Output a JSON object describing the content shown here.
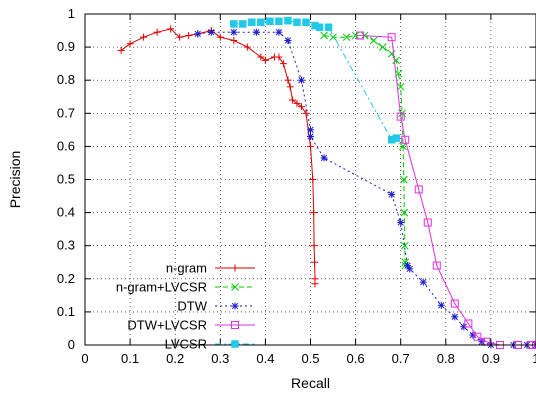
{
  "chart_data": {
    "type": "line",
    "xlabel": "Recall",
    "ylabel": "Precision",
    "xlim": [
      0,
      1
    ],
    "ylim": [
      0,
      1
    ],
    "x_ticks": [
      "0",
      "0.1",
      "0.2",
      "0.3",
      "0.4",
      "0.5",
      "0.6",
      "0.7",
      "0.8",
      "0.9",
      "1"
    ],
    "y_ticks": [
      "0",
      "0.1",
      "0.2",
      "0.3",
      "0.4",
      "0.5",
      "0.6",
      "0.7",
      "0.8",
      "0.9",
      "1"
    ],
    "grid": true,
    "legend_position": "bottom-left",
    "series": [
      {
        "name": "n-gram",
        "color": "#dd0000",
        "dash": "solid",
        "marker": "plus",
        "points": [
          [
            0.08,
            0.89
          ],
          [
            0.1,
            0.91
          ],
          [
            0.13,
            0.93
          ],
          [
            0.16,
            0.945
          ],
          [
            0.19,
            0.955
          ],
          [
            0.21,
            0.93
          ],
          [
            0.23,
            0.935
          ],
          [
            0.25,
            0.94
          ],
          [
            0.28,
            0.95
          ],
          [
            0.3,
            0.93
          ],
          [
            0.33,
            0.92
          ],
          [
            0.36,
            0.9
          ],
          [
            0.39,
            0.87
          ],
          [
            0.4,
            0.86
          ],
          [
            0.42,
            0.87
          ],
          [
            0.43,
            0.87
          ],
          [
            0.44,
            0.85
          ],
          [
            0.45,
            0.8
          ],
          [
            0.455,
            0.78
          ],
          [
            0.46,
            0.74
          ],
          [
            0.47,
            0.73
          ],
          [
            0.48,
            0.72
          ],
          [
            0.49,
            0.7
          ],
          [
            0.5,
            0.6
          ],
          [
            0.505,
            0.5
          ],
          [
            0.507,
            0.4
          ],
          [
            0.508,
            0.3
          ],
          [
            0.509,
            0.25
          ],
          [
            0.51,
            0.2
          ],
          [
            0.51,
            0.185
          ]
        ]
      },
      {
        "name": "n-gram+LVCSR",
        "color": "#00cc00",
        "dash": "5,3",
        "marker": "x",
        "points": [
          [
            0.53,
            0.935
          ],
          [
            0.55,
            0.93
          ],
          [
            0.58,
            0.93
          ],
          [
            0.6,
            0.935
          ],
          [
            0.62,
            0.935
          ],
          [
            0.64,
            0.92
          ],
          [
            0.66,
            0.9
          ],
          [
            0.68,
            0.88
          ],
          [
            0.69,
            0.86
          ],
          [
            0.695,
            0.82
          ],
          [
            0.7,
            0.78
          ],
          [
            0.703,
            0.7
          ],
          [
            0.705,
            0.6
          ],
          [
            0.707,
            0.5
          ],
          [
            0.708,
            0.4
          ],
          [
            0.709,
            0.3
          ],
          [
            0.71,
            0.25
          ],
          [
            0.71,
            0.24
          ]
        ]
      },
      {
        "name": "DTW",
        "color": "#1a1acc",
        "dash": "2,3",
        "marker": "star",
        "points": [
          [
            0.25,
            0.94
          ],
          [
            0.28,
            0.945
          ],
          [
            0.33,
            0.945
          ],
          [
            0.38,
            0.945
          ],
          [
            0.43,
            0.945
          ],
          [
            0.45,
            0.92
          ],
          [
            0.48,
            0.8
          ],
          [
            0.5,
            0.65
          ],
          [
            0.5,
            0.63
          ],
          [
            0.53,
            0.565
          ],
          [
            0.68,
            0.455
          ],
          [
            0.7,
            0.37
          ],
          [
            0.715,
            0.24
          ],
          [
            0.72,
            0.23
          ],
          [
            0.75,
            0.19
          ],
          [
            0.79,
            0.12
          ],
          [
            0.82,
            0.085
          ],
          [
            0.84,
            0.055
          ],
          [
            0.86,
            0.03
          ],
          [
            0.88,
            0.01
          ],
          [
            0.9,
            0.0
          ],
          [
            0.95,
            0.0
          ],
          [
            0.98,
            0.0
          ],
          [
            1.0,
            0.0
          ]
        ]
      },
      {
        "name": "DTW+LVCSR",
        "color": "#e030e0",
        "dash": "solid",
        "marker": "square-open",
        "points": [
          [
            0.61,
            0.935
          ],
          [
            0.68,
            0.93
          ],
          [
            0.7,
            0.69
          ],
          [
            0.71,
            0.62
          ],
          [
            0.74,
            0.47
          ],
          [
            0.76,
            0.37
          ],
          [
            0.78,
            0.24
          ],
          [
            0.82,
            0.125
          ],
          [
            0.85,
            0.065
          ],
          [
            0.87,
            0.025
          ],
          [
            0.89,
            0.01
          ],
          [
            0.92,
            0.0
          ],
          [
            0.96,
            0.0
          ],
          [
            0.99,
            0.0
          ],
          [
            1.0,
            0.0
          ]
        ]
      },
      {
        "name": "LVCSR",
        "color": "#22c8e8",
        "dash": "6,3,2,3",
        "marker": "square-filled",
        "points": [
          [
            0.33,
            0.97
          ],
          [
            0.35,
            0.97
          ],
          [
            0.37,
            0.975
          ],
          [
            0.39,
            0.975
          ],
          [
            0.41,
            0.978
          ],
          [
            0.43,
            0.978
          ],
          [
            0.45,
            0.98
          ],
          [
            0.47,
            0.975
          ],
          [
            0.49,
            0.975
          ],
          [
            0.51,
            0.965
          ],
          [
            0.52,
            0.96
          ],
          [
            0.54,
            0.96
          ],
          [
            0.68,
            0.62
          ],
          [
            0.69,
            0.625
          ]
        ]
      }
    ]
  }
}
